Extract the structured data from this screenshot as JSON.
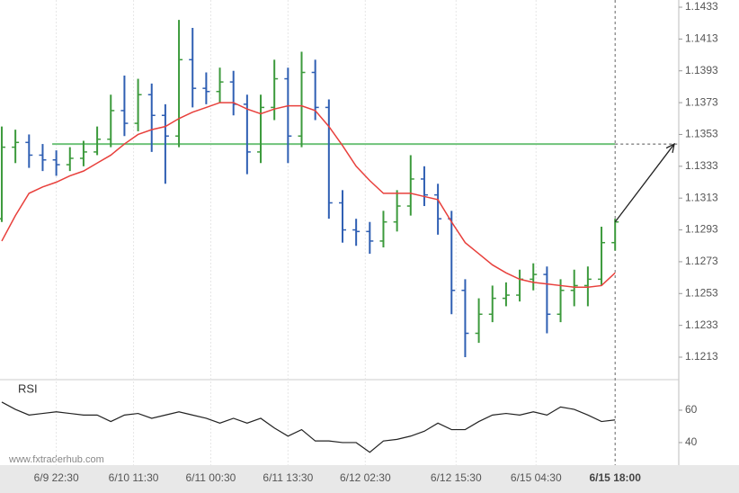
{
  "chart_data": {
    "type": "ohlc",
    "watermark": "www.fxtraderhub.com",
    "xlim": [
      -0.13,
      49.67
    ],
    "xticks": [
      {
        "value": 4,
        "label": "6/9 22:30"
      },
      {
        "value": 9.67,
        "label": "6/10 11:30"
      },
      {
        "value": 15.33,
        "label": "6/11 00:30"
      },
      {
        "value": 21,
        "label": "6/11 13:30"
      },
      {
        "value": 26.67,
        "label": "6/12 02:30"
      },
      {
        "value": 33.33,
        "label": "6/12 15:30"
      },
      {
        "value": 39.2,
        "label": "6/15 04:30"
      },
      {
        "value": 45,
        "label": "6/15 18:00"
      }
    ],
    "ylim": [
      1.12,
      1.1433
    ],
    "yticks": [
      1.1213,
      1.1233,
      1.1253,
      1.1273,
      1.1293,
      1.1313,
      1.1333,
      1.1353,
      1.1373,
      1.1393,
      1.1413,
      1.1433
    ],
    "grid": true,
    "up_color": "#3c9a3c",
    "down_color": "#2f5fb3",
    "open": [
      1.13,
      1.1345,
      1.1348,
      1.134,
      1.1337,
      1.1334,
      1.1338,
      1.1342,
      1.135,
      1.1368,
      1.136,
      1.1378,
      1.1365,
      1.1352,
      1.14,
      1.1382,
      1.138,
      1.1386,
      1.1372,
      1.1342,
      1.137,
      1.1388,
      1.1352,
      1.1392,
      1.137,
      1.131,
      1.1293,
      1.1292,
      1.1286,
      1.1298,
      1.1308,
      1.1325,
      1.1315,
      1.13,
      1.1255,
      1.1228,
      1.124,
      1.125,
      1.1252,
      1.1262,
      1.1265,
      1.124,
      1.1255,
      1.1258,
      1.1262,
      1.1285
    ],
    "high": [
      1.1358,
      1.1356,
      1.1353,
      1.1347,
      1.1343,
      1.1345,
      1.1349,
      1.1358,
      1.1378,
      1.139,
      1.1388,
      1.1385,
      1.1372,
      1.1425,
      1.142,
      1.1392,
      1.1395,
      1.1393,
      1.1378,
      1.1378,
      1.14,
      1.1395,
      1.1405,
      1.14,
      1.1375,
      1.1318,
      1.13,
      1.1298,
      1.1305,
      1.1318,
      1.134,
      1.1333,
      1.1322,
      1.1305,
      1.1262,
      1.125,
      1.1258,
      1.126,
      1.1268,
      1.1272,
      1.127,
      1.1262,
      1.1268,
      1.127,
      1.1295,
      1.13
    ],
    "low": [
      1.1298,
      1.1335,
      1.1332,
      1.133,
      1.1327,
      1.133,
      1.1333,
      1.134,
      1.1345,
      1.1352,
      1.1355,
      1.1342,
      1.1322,
      1.1345,
      1.137,
      1.1372,
      1.1373,
      1.1365,
      1.1328,
      1.1335,
      1.1362,
      1.1335,
      1.1345,
      1.1362,
      1.13,
      1.1285,
      1.1283,
      1.1278,
      1.1282,
      1.1292,
      1.1302,
      1.1308,
      1.129,
      1.124,
      1.1213,
      1.1222,
      1.1235,
      1.1245,
      1.1248,
      1.1255,
      1.1228,
      1.1235,
      1.1245,
      1.1245,
      1.1258,
      1.128
    ],
    "close": [
      1.1345,
      1.1348,
      1.134,
      1.1337,
      1.1334,
      1.1338,
      1.1342,
      1.135,
      1.1368,
      1.136,
      1.1378,
      1.1365,
      1.1352,
      1.14,
      1.1382,
      1.138,
      1.1386,
      1.1372,
      1.1342,
      1.137,
      1.1388,
      1.1352,
      1.1392,
      1.137,
      1.131,
      1.1293,
      1.1292,
      1.1286,
      1.1298,
      1.1308,
      1.1325,
      1.1315,
      1.13,
      1.1255,
      1.1228,
      1.124,
      1.125,
      1.1252,
      1.1262,
      1.1265,
      1.124,
      1.1255,
      1.1258,
      1.1262,
      1.1285,
      1.1298
    ],
    "moving_average": {
      "color": "#e8403c",
      "values": [
        1.1286,
        1.1302,
        1.1316,
        1.132,
        1.1323,
        1.1327,
        1.133,
        1.1335,
        1.134,
        1.1347,
        1.1353,
        1.1356,
        1.1358,
        1.1363,
        1.1367,
        1.137,
        1.1373,
        1.1373,
        1.1369,
        1.1366,
        1.1369,
        1.1371,
        1.1371,
        1.1368,
        1.1358,
        1.1346,
        1.1333,
        1.1324,
        1.1316,
        1.1316,
        1.1316,
        1.1314,
        1.1312,
        1.1298,
        1.1285,
        1.1278,
        1.1271,
        1.1266,
        1.1262,
        1.126,
        1.1259,
        1.1258,
        1.1257,
        1.1257,
        1.1258,
        1.1266
      ]
    },
    "level": {
      "value": 1.1347,
      "color": "#6fc27a"
    },
    "rsi": {
      "label": "RSI",
      "color": "#222222",
      "ylim": [
        27.2,
        77.2
      ],
      "yticks": [
        40,
        60
      ],
      "values": [
        65,
        60.5,
        57,
        58,
        59,
        58,
        57,
        57,
        53,
        57,
        58,
        55,
        57,
        59,
        57,
        55,
        52,
        55,
        52,
        55,
        49,
        44,
        48,
        41,
        41,
        40,
        40,
        34,
        41,
        42,
        44,
        47,
        52,
        48,
        48,
        53,
        57,
        58,
        57,
        59,
        57,
        62,
        60.5,
        57,
        53,
        54
      ]
    }
  }
}
